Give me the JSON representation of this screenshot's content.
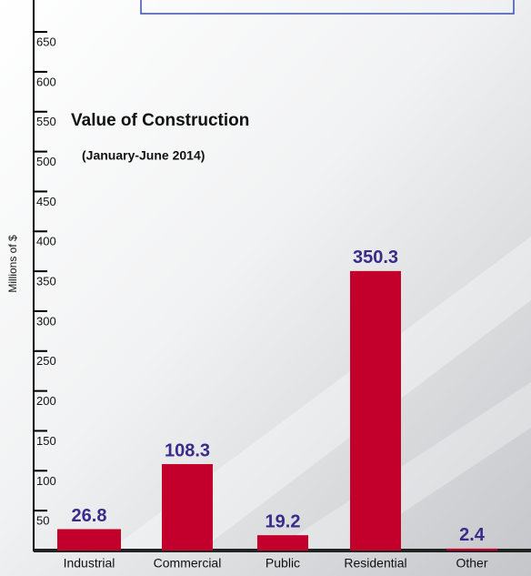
{
  "chart_data": {
    "type": "bar",
    "title": "Value of Construction",
    "subtitle": "(January-June 2014)",
    "y_label": "Millions of $",
    "categories": [
      "Industrial",
      "Commercial",
      "Public",
      "Residential",
      "Other"
    ],
    "values": [
      26.8,
      108.3,
      19.2,
      350.3,
      2.4
    ],
    "color": "#c2002b",
    "ylim": [
      0,
      690
    ],
    "yticks": [
      50,
      100,
      150,
      200,
      250,
      300,
      350,
      400,
      450,
      500,
      550,
      600,
      650
    ]
  }
}
